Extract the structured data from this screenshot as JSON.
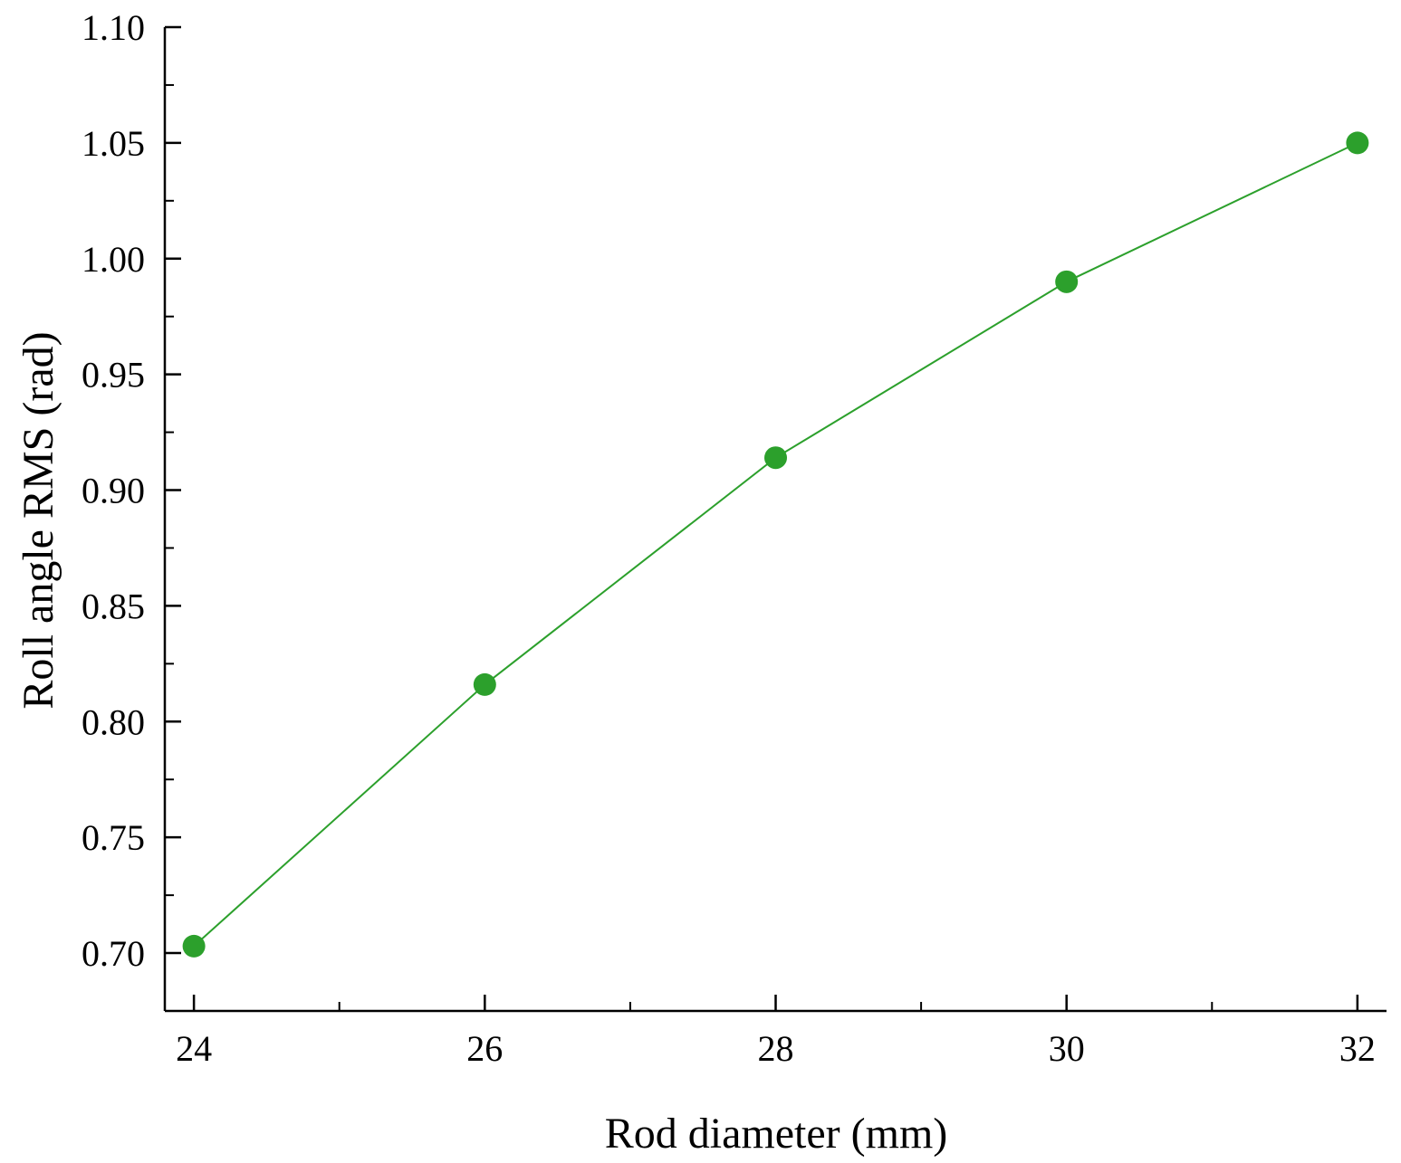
{
  "chart_data": {
    "type": "line",
    "title": "",
    "xlabel": "Rod diameter (mm)",
    "ylabel": "Roll angle RMS (rad)",
    "x": [
      24,
      26,
      28,
      30,
      32
    ],
    "series": [
      {
        "values": [
          0.703,
          0.816,
          0.914,
          0.99,
          1.05
        ],
        "color": "#2ca02c"
      }
    ],
    "xlim": [
      23.8,
      32.2
    ],
    "ylim": [
      0.675,
      1.1
    ],
    "xticks": [
      "24",
      "26",
      "28",
      "30",
      "32"
    ],
    "yticks": [
      "0.70",
      "0.75",
      "0.80",
      "0.85",
      "0.90",
      "0.95",
      "1.00",
      "1.05",
      "1.10"
    ],
    "grid": false,
    "legend": "none"
  }
}
